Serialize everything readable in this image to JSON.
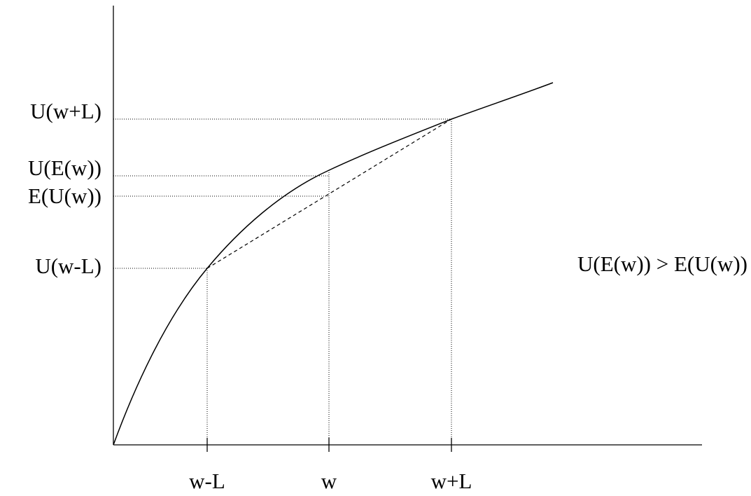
{
  "y_labels": [
    "U(w+L)",
    "U(E(w))",
    "E(U(w))",
    "U(w-L)"
  ],
  "x_labels": [
    "w-L",
    "w",
    "w+L"
  ],
  "annotation": "U(E(w)) > E(U(w))"
}
